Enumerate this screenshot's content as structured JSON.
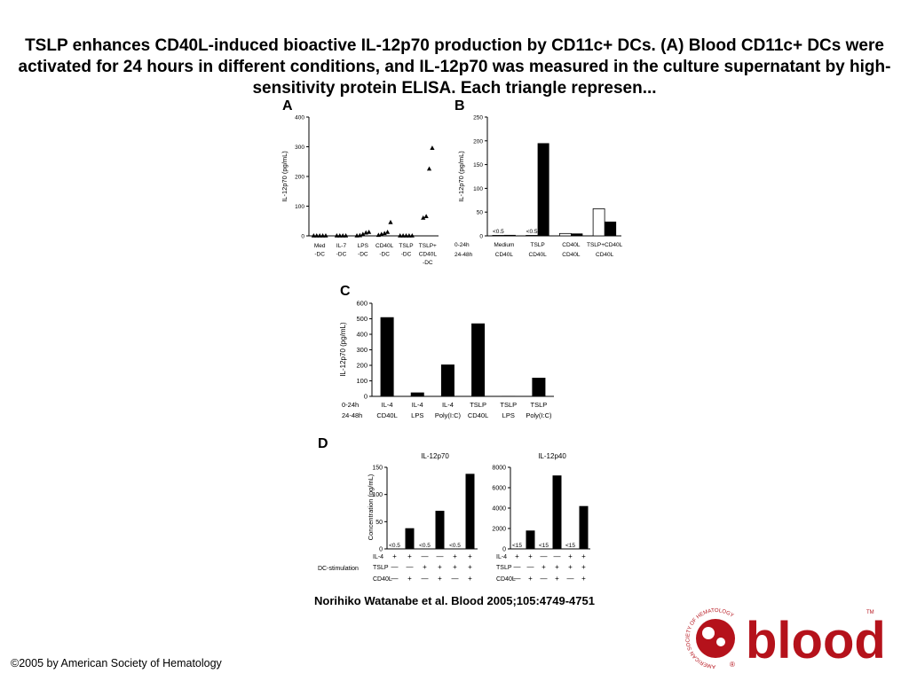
{
  "title": "TSLP enhances CD40L-induced bioactive IL-12p70 production by CD11c+ DCs. (A) Blood CD11c+ DCs were activated for 24 hours in different conditions, and IL-12p70 was measured in the culture supernatant by high-sensitivity protein ELISA. Each triangle represen...",
  "citation": "Norihiko Watanabe et al. Blood 2005;105:4749-4751",
  "copyright": "©2005 by American Society of Hematology",
  "logo": {
    "word": "blood",
    "ring_text": "AMERICAN SOCIETY OF HEMATOLOGY",
    "tm": "TM",
    "reg": "®",
    "color": "#b5121b"
  },
  "chart_data": [
    {
      "panel": "A",
      "type": "scatter",
      "ylabel": "IL-12p70 (pg/mL)",
      "ylim": [
        0,
        400
      ],
      "yticks": [
        0,
        100,
        200,
        300,
        400
      ],
      "categories": [
        [
          "Med",
          "-DC"
        ],
        [
          "IL-7",
          "-DC"
        ],
        [
          "LPS",
          "-DC"
        ],
        [
          "CD40L",
          "-DC"
        ],
        [
          "TSLP",
          "-DC"
        ],
        [
          "TSLP+",
          "CD40L",
          "-DC"
        ]
      ],
      "points": [
        [
          0,
          0,
          0,
          0,
          0
        ],
        [
          0,
          0,
          0,
          0
        ],
        [
          0,
          1,
          5,
          10,
          12
        ],
        [
          2,
          5,
          8,
          12,
          45
        ],
        [
          0,
          0,
          0,
          0,
          0
        ],
        [
          60,
          65,
          225,
          295
        ]
      ]
    },
    {
      "panel": "B",
      "type": "bar",
      "ylabel": "IL-12p70 (pg/mL)",
      "ylim": [
        0,
        250
      ],
      "yticks": [
        0,
        50,
        100,
        150,
        200,
        250
      ],
      "row_labels": [
        "0-24h",
        "24-48h"
      ],
      "groups": [
        {
          "top": "Medium",
          "bottom": "CD40L",
          "open": 1,
          "filled": 2,
          "open_label": "<0.5"
        },
        {
          "top": "TSLP",
          "bottom": "CD40L",
          "open": 1,
          "filled": 195,
          "open_label": "<0.5"
        },
        {
          "top": "CD40L",
          "bottom": "CD40L",
          "open": 5,
          "filled": 5
        },
        {
          "top": "TSLP+CD40L",
          "bottom": "CD40L",
          "open": 57,
          "filled": 30
        }
      ]
    },
    {
      "panel": "C",
      "type": "bar",
      "ylabel": "IL-12p70 (pg/mL)",
      "ylim": [
        0,
        600
      ],
      "yticks": [
        0,
        100,
        200,
        300,
        400,
        500,
        600
      ],
      "row_labels": [
        "0-24h",
        "24-48h"
      ],
      "categories": [
        {
          "top": "IL-4",
          "bottom": "CD40L",
          "value": 510
        },
        {
          "top": "IL-4",
          "bottom": "LPS",
          "value": 25
        },
        {
          "top": "IL-4",
          "bottom": "Poly(I:C)",
          "value": 205
        },
        {
          "top": "TSLP",
          "bottom": "CD40L",
          "value": 470
        },
        {
          "top": "TSLP",
          "bottom": "LPS",
          "value": 3
        },
        {
          "top": "TSLP",
          "bottom": "Poly(I:C)",
          "value": 120
        }
      ]
    },
    {
      "panel": "D",
      "type": "bar",
      "ylabel": "Concentration (pg/mL)",
      "stim_label": "DC-stimulation",
      "row_names": [
        "IL-4",
        "TSLP",
        "CD40L"
      ],
      "conditions": [
        [
          "+",
          "—",
          "—"
        ],
        [
          "+",
          "—",
          "+"
        ],
        [
          "—",
          "+",
          "—"
        ],
        [
          "—",
          "+",
          "+"
        ],
        [
          "+",
          "+",
          "—"
        ],
        [
          "+",
          "+",
          "+"
        ]
      ],
      "subplots": [
        {
          "title": "IL-12p70",
          "ylim": [
            0,
            150
          ],
          "yticks": [
            0,
            50,
            100,
            150
          ],
          "values": [
            0,
            38,
            0,
            70,
            0,
            138
          ],
          "low_label": "<0.5"
        },
        {
          "title": "IL-12p40",
          "ylim": [
            0,
            8000
          ],
          "yticks": [
            0,
            2000,
            4000,
            6000,
            8000
          ],
          "values": [
            0,
            1800,
            0,
            7200,
            0,
            4200
          ],
          "low_label": "<15"
        }
      ]
    }
  ]
}
